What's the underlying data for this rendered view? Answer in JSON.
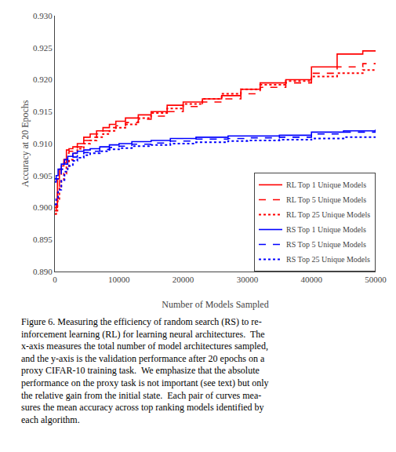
{
  "chart_data": {
    "type": "step",
    "xlabel": "Number of Models Sampled",
    "ylabel": "Accuracy at 20 Epochs",
    "annotations": [
      "Figure 6. Measuring the efficiency of random search (RS) to re-",
      "inforcement learning (RL) for learning neural architectures.  The",
      "x-axis measures the total number of model architectures sampled,",
      "and the y-axis is the validation performance after 20 epochs on a",
      "proxy CIFAR-10 training task.  We emphasize that the absolute",
      "performance on the proxy task is not important (see text) but only",
      "the relative gain from the initial state.  Each pair of curves mea-",
      "sures the mean accuracy across top ranking models identified by",
      "each algorithm."
    ],
    "xlim": [
      0,
      50000
    ],
    "ylim": [
      0.89,
      0.93
    ],
    "xticks": [
      0,
      10000,
      20000,
      30000,
      40000,
      50000
    ],
    "yticks": [
      {
        "value": 0.89,
        "label": "0.890"
      },
      0.895,
      {
        "value": 0.9,
        "label": "0.900"
      },
      0.905,
      {
        "value": 0.91,
        "label": "0.910"
      },
      0.915,
      {
        "value": 0.92,
        "label": "0.920"
      },
      0.925,
      {
        "value": 0.93,
        "label": "0.930"
      }
    ],
    "grid": false,
    "legend": "lower right",
    "series": [
      {
        "name": "RL Top 1 Unique Models",
        "color": "#ff0000",
        "line_style": "solid",
        "x": [
          0,
          200,
          400,
          700,
          1000,
          1400,
          1800,
          2200,
          2800,
          3500,
          4500,
          5500,
          6500,
          7500,
          8500,
          9500,
          11000,
          13000,
          15000,
          17500,
          20000,
          23000,
          26000,
          29000,
          32000,
          36000,
          40000,
          44000,
          48000,
          50000
        ],
        "values": [
          0.9,
          0.9005,
          0.9045,
          0.906,
          0.9065,
          0.9075,
          0.909,
          0.9092,
          0.9095,
          0.91,
          0.911,
          0.9115,
          0.912,
          0.9125,
          0.913,
          0.9135,
          0.914,
          0.9145,
          0.915,
          0.916,
          0.9165,
          0.917,
          0.9175,
          0.9185,
          0.9195,
          0.92,
          0.922,
          0.924,
          0.9245,
          0.9245
        ]
      },
      {
        "name": "RL Top 5 Unique Models",
        "color": "#ff0000",
        "line_style": "dashed",
        "x": [
          0,
          200,
          400,
          700,
          1000,
          1400,
          1800,
          2200,
          2800,
          3500,
          4500,
          5500,
          6500,
          7500,
          8500,
          9500,
          11000,
          13000,
          15000,
          17500,
          20000,
          23000,
          26000,
          29000,
          32000,
          36000,
          40000,
          44000,
          48000,
          50000
        ],
        "values": [
          0.8995,
          0.9,
          0.903,
          0.905,
          0.906,
          0.907,
          0.9085,
          0.9088,
          0.9092,
          0.9095,
          0.9105,
          0.911,
          0.9115,
          0.912,
          0.9125,
          0.9128,
          0.9133,
          0.9138,
          0.9143,
          0.915,
          0.9158,
          0.9165,
          0.917,
          0.9178,
          0.9188,
          0.9195,
          0.921,
          0.922,
          0.9225,
          0.9225
        ]
      },
      {
        "name": "RL Top 25 Unique Models",
        "color": "#ff0000",
        "line_style": "dotted",
        "x": [
          0,
          200,
          400,
          700,
          1000,
          1400,
          1800,
          2200,
          2800,
          3500,
          4500,
          5500,
          6500,
          7500,
          8500,
          9500,
          11000,
          13000,
          15000,
          17500,
          20000,
          23000,
          26000,
          29000,
          32000,
          36000,
          40000,
          44000,
          48000,
          50000
        ],
        "values": [
          0.899,
          0.8995,
          0.901,
          0.903,
          0.9042,
          0.9053,
          0.9065,
          0.9075,
          0.9085,
          0.9092,
          0.91,
          0.9105,
          0.911,
          0.9115,
          0.912,
          0.9125,
          0.913,
          0.914,
          0.9148,
          0.9155,
          0.9162,
          0.917,
          0.9178,
          0.9185,
          0.9192,
          0.9198,
          0.9205,
          0.921,
          0.9215,
          0.9215
        ]
      },
      {
        "name": "RS Top 1 Unique Models",
        "color": "#0000ff",
        "line_style": "solid",
        "x": [
          0,
          200,
          500,
          1000,
          1500,
          2000,
          2800,
          3500,
          4500,
          5500,
          7000,
          8500,
          10000,
          12000,
          15000,
          18000,
          22000,
          27000,
          30000,
          35000,
          40000,
          45000,
          50000
        ],
        "values": [
          0.9045,
          0.905,
          0.906,
          0.9068,
          0.9075,
          0.908,
          0.9085,
          0.9088,
          0.909,
          0.9092,
          0.9095,
          0.9098,
          0.91,
          0.9103,
          0.9105,
          0.9108,
          0.911,
          0.9112,
          0.9112,
          0.9113,
          0.9118,
          0.912,
          0.9122
        ]
      },
      {
        "name": "RS Top 5 Unique Models",
        "color": "#0000ff",
        "line_style": "dashed",
        "x": [
          0,
          200,
          500,
          1000,
          1500,
          2000,
          2800,
          3500,
          4500,
          5500,
          7000,
          8500,
          10000,
          12000,
          15000,
          18000,
          22000,
          27000,
          30000,
          35000,
          40000,
          45000,
          50000
        ],
        "values": [
          0.904,
          0.9045,
          0.9052,
          0.906,
          0.9068,
          0.9074,
          0.9079,
          0.9083,
          0.9086,
          0.9088,
          0.9091,
          0.9094,
          0.9096,
          0.9099,
          0.9101,
          0.9104,
          0.9107,
          0.9108,
          0.9109,
          0.911,
          0.9115,
          0.9118,
          0.912
        ]
      },
      {
        "name": "RS Top 25 Unique Models",
        "color": "#0000ff",
        "line_style": "dotted",
        "x": [
          0,
          200,
          500,
          1000,
          1500,
          2000,
          2800,
          3500,
          4500,
          5500,
          7000,
          8500,
          10000,
          12000,
          15000,
          18000,
          22000,
          27000,
          30000,
          35000,
          40000,
          45000,
          50000
        ],
        "values": [
          0.9005,
          0.9015,
          0.9028,
          0.9043,
          0.9056,
          0.9065,
          0.9073,
          0.9078,
          0.9082,
          0.9085,
          0.9088,
          0.9091,
          0.9093,
          0.9096,
          0.9098,
          0.91,
          0.9102,
          0.9104,
          0.9105,
          0.9106,
          0.9108,
          0.911,
          0.9112
        ]
      }
    ]
  }
}
